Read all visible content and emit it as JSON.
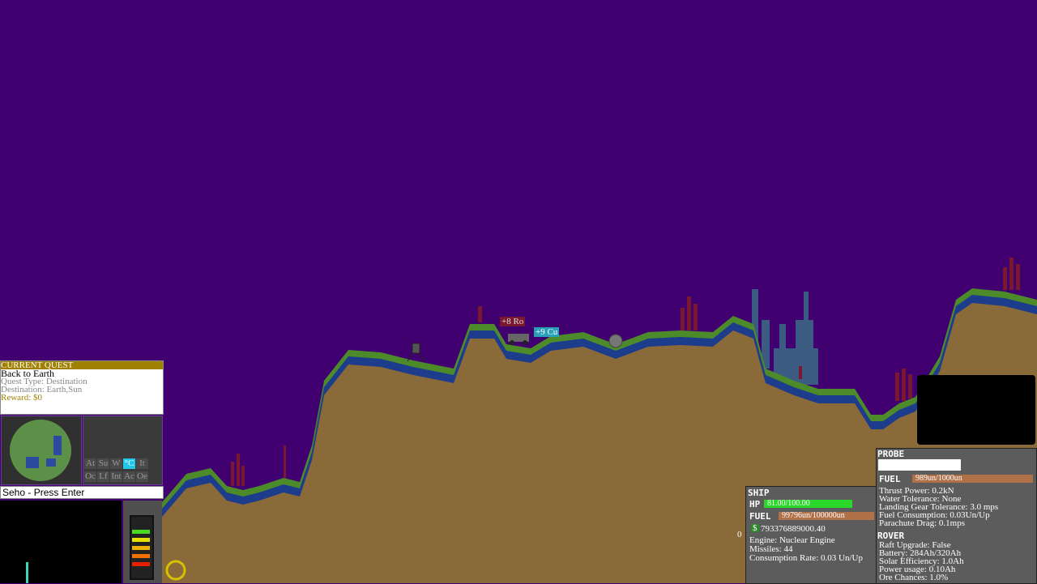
{
  "quest": {
    "header": "CURRENT QUEST",
    "title": "Back to Earth",
    "type": "Quest Type: Destination",
    "destination": "Destination: Earth,Sun",
    "reward": "Reward: $0"
  },
  "tabs": [
    "At",
    "Su",
    "W",
    "°C",
    "It",
    "Oc",
    "Lf",
    "Int",
    "Ac",
    "Oe"
  ],
  "prompt": "Seho - Press Enter",
  "pickups": [
    "+8 Ro",
    "+9 Cu"
  ],
  "ship": {
    "header": "SHIP",
    "hp_label": "HP",
    "hp": "81.00/100.00",
    "fuel_label": "FUEL",
    "fuel": "99796un/100000un",
    "money_icon": "$",
    "money": "793376889000.40",
    "engine": "Engine: Nuclear Engine",
    "missiles": "Missiles: 44",
    "consumption": "Consumption Rate: 0.03 Un/Up",
    "side": "0"
  },
  "probe": {
    "header": "PROBE",
    "fuel_label": "FUEL",
    "fuel": "989un/1000un",
    "stats": [
      "Thrust Power: 0.2kN",
      "Water Tolerance: None",
      "Landing Gear Tolerance: 3.0 mps",
      "Fuel Consumption: 0.03Un/Up",
      "Parachute Drag: 0.1mps"
    ]
  },
  "rover": {
    "header": "ROVER",
    "stats": [
      "Raft Upgrade: False",
      "Battery: 284Ah/320Ah",
      "Solar Efficiency: 1.0Ah",
      "Power usage: 0.10Ah",
      "Ore Chances: 1.0%"
    ]
  }
}
